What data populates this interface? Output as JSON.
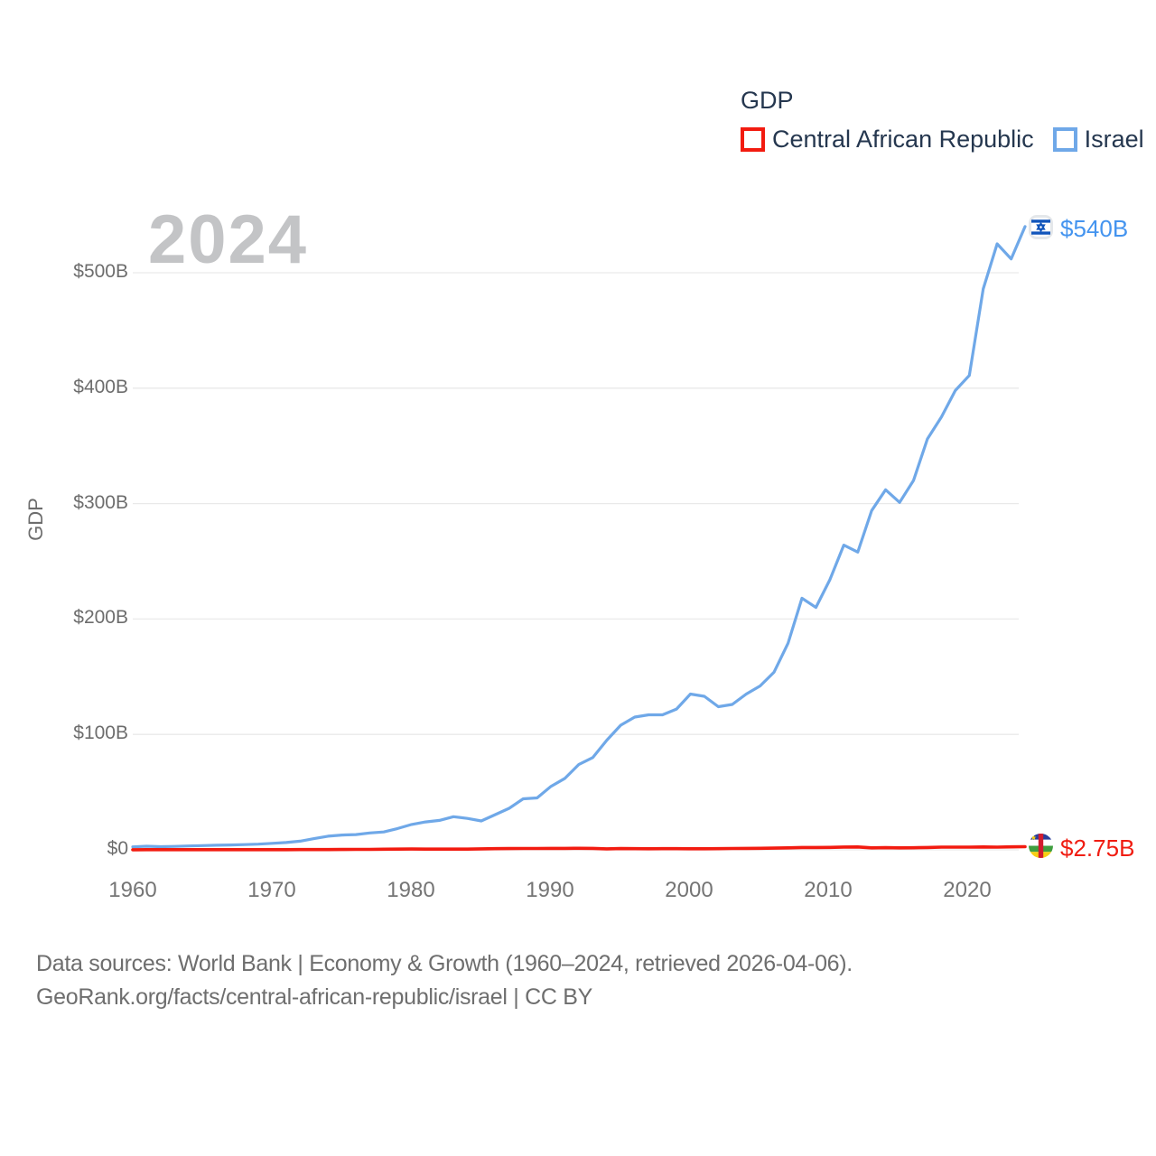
{
  "legend": {
    "title": "GDP",
    "items": [
      {
        "label": "Central African Republic",
        "color": "#f21b10"
      },
      {
        "label": "Israel",
        "color": "#6fa8e8"
      }
    ]
  },
  "watermark": "2024",
  "y_axis": {
    "title": "GDP",
    "ticks": [
      "$0",
      "$100B",
      "$200B",
      "$300B",
      "$400B",
      "$500B"
    ]
  },
  "x_axis": {
    "ticks": [
      "1960",
      "1970",
      "1980",
      "1990",
      "2000",
      "2010",
      "2020"
    ]
  },
  "end_labels": {
    "israel": {
      "value": "$540B",
      "color": "#4494ef",
      "flag": "israel-flag"
    },
    "central_african_republic": {
      "value": "$2.75B",
      "color": "#f01d12",
      "flag": "central-african-republic-flag"
    }
  },
  "footer": {
    "line1": "Data sources: World Bank | Economy & Growth (1960–2024, retrieved 2026-04-06).",
    "line2": "GeoRank.org/facts/central-african-republic/israel | CC BY"
  },
  "chart_data": {
    "type": "line",
    "title": "GDP",
    "xlabel": "",
    "ylabel": "GDP",
    "unit": "billions of current USD",
    "grid": true,
    "legend_position": "top-right",
    "xlim": [
      1960,
      2024
    ],
    "ylim": [
      0,
      555
    ],
    "x_ticks": [
      1960,
      1970,
      1980,
      1990,
      2000,
      2010,
      2020
    ],
    "y_tick_values": [
      0,
      100,
      200,
      300,
      400,
      500
    ],
    "y_tick_labels": [
      "$0",
      "$100B",
      "$200B",
      "$300B",
      "$400B",
      "$500B"
    ],
    "x": [
      1960,
      1961,
      1962,
      1963,
      1964,
      1965,
      1966,
      1967,
      1968,
      1969,
      1970,
      1971,
      1972,
      1973,
      1974,
      1975,
      1976,
      1977,
      1978,
      1979,
      1980,
      1981,
      1982,
      1983,
      1984,
      1985,
      1986,
      1987,
      1988,
      1989,
      1990,
      1991,
      1992,
      1993,
      1994,
      1995,
      1996,
      1997,
      1998,
      1999,
      2000,
      2001,
      2002,
      2003,
      2004,
      2005,
      2006,
      2007,
      2008,
      2009,
      2010,
      2011,
      2012,
      2013,
      2014,
      2015,
      2016,
      2017,
      2018,
      2019,
      2020,
      2021,
      2022,
      2023,
      2024
    ],
    "series": [
      {
        "name": "Central African Republic",
        "color": "#f21b10",
        "end_value_label": "$2.75B",
        "values": [
          0.11,
          0.12,
          0.12,
          0.13,
          0.14,
          0.15,
          0.15,
          0.16,
          0.17,
          0.18,
          0.18,
          0.19,
          0.2,
          0.24,
          0.27,
          0.33,
          0.36,
          0.43,
          0.53,
          0.59,
          0.67,
          0.64,
          0.6,
          0.59,
          0.62,
          0.85,
          1.0,
          1.09,
          1.16,
          1.15,
          1.25,
          1.23,
          1.32,
          1.26,
          0.89,
          1.12,
          1.05,
          0.95,
          1.01,
          1.04,
          0.91,
          0.97,
          1.04,
          1.14,
          1.27,
          1.35,
          1.48,
          1.7,
          2.0,
          2.06,
          2.14,
          2.43,
          2.51,
          1.69,
          1.9,
          1.7,
          1.83,
          2.07,
          2.38,
          2.38,
          2.33,
          2.52,
          2.38,
          2.56,
          2.75
        ]
      },
      {
        "name": "Israel",
        "color": "#6fa8e8",
        "end_value_label": "$540B",
        "values": [
          2.6,
          3.1,
          2.7,
          3.0,
          3.4,
          3.7,
          4.0,
          4.2,
          4.5,
          4.9,
          5.6,
          6.3,
          7.5,
          9.7,
          11.8,
          12.8,
          13.2,
          14.6,
          15.5,
          18.5,
          22.0,
          24.2,
          25.5,
          28.7,
          27.2,
          25.0,
          30.5,
          36.0,
          44.2,
          45.0,
          55.0,
          62.0,
          74.0,
          80.0,
          95.0,
          108.0,
          115.0,
          117.0,
          117.0,
          122.0,
          135.0,
          133.0,
          124.0,
          126.0,
          135.0,
          142.0,
          154.0,
          179.0,
          218.0,
          210.0,
          234.0,
          264.0,
          258.0,
          294.0,
          312.0,
          301.0,
          320.0,
          356.0,
          375.0,
          398.0,
          411.0,
          486.0,
          525.0,
          512.0,
          540.0
        ]
      }
    ]
  }
}
